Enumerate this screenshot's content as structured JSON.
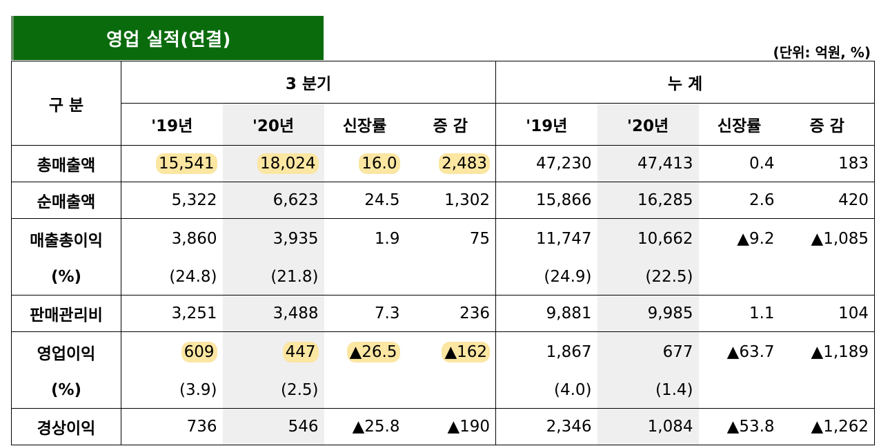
{
  "title": "영업 실적(연결)",
  "unit": "(단위: 억원, %)",
  "header": {
    "category": "구  분",
    "quarter_group": "3 분기",
    "cumulative_group": "누 계",
    "columns": [
      "'19년",
      "'20년",
      "신장률",
      "증 감",
      "'19년",
      "'20년",
      "신장률",
      "증 감"
    ]
  },
  "rows": [
    {
      "label": "총매출액",
      "values": [
        "15,541",
        "18,024",
        "16.0",
        "2,483",
        "47,230",
        "47,413",
        "0.4",
        "183"
      ]
    },
    {
      "label": "순매출액",
      "values": [
        "5,322",
        "6,623",
        "24.5",
        "1,302",
        "15,866",
        "16,285",
        "2.6",
        "420"
      ]
    },
    {
      "label": "매출총이익",
      "values": [
        "3,860",
        "3,935",
        "1.9",
        "75",
        "11,747",
        "10,662",
        "▲9.2",
        "▲1,085"
      ],
      "sub_label": "(%)",
      "sub_values": [
        "(24.8)",
        "(21.8)",
        "",
        "",
        "(24.9)",
        "(22.5)",
        "",
        ""
      ]
    },
    {
      "label": "판매관리비",
      "values": [
        "3,251",
        "3,488",
        "7.3",
        "236",
        "9,881",
        "9,985",
        "1.1",
        "104"
      ]
    },
    {
      "label": "영업이익",
      "values": [
        "609",
        "447",
        "▲26.5",
        "▲162",
        "1,867",
        "677",
        "▲63.7",
        "▲1,189"
      ],
      "sub_label": "(%)",
      "sub_values": [
        "(3.9)",
        "(2.5)",
        "",
        "",
        "(4.0)",
        "(1.4)",
        "",
        ""
      ]
    },
    {
      "label": "경상이익",
      "values": [
        "736",
        "546",
        "▲25.8",
        "▲190",
        "2,346",
        "1,084",
        "▲53.8",
        "▲1,262"
      ]
    }
  ]
}
